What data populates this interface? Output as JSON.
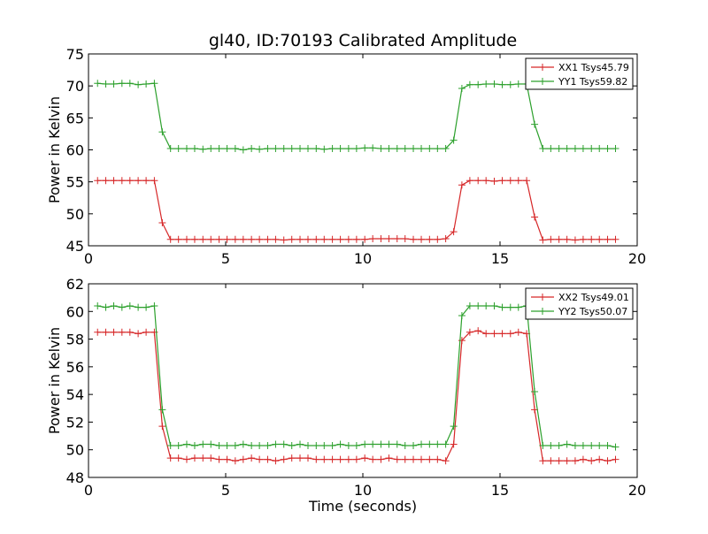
{
  "figure": {
    "title": "gl40, ID:70193 Calibrated Amplitude"
  },
  "chart_data": [
    {
      "type": "line",
      "title": "gl40, ID:70193 Calibrated Amplitude",
      "xlabel": "",
      "ylabel": "Power in Kelvin",
      "xlim": [
        0,
        20
      ],
      "ylim": [
        45,
        75
      ],
      "xticks": [
        "0",
        "5",
        "10",
        "15",
        "20"
      ],
      "yticks": [
        "45",
        "50",
        "55",
        "60",
        "65",
        "70",
        "75"
      ],
      "grid": false,
      "legend_position": "top-right",
      "x": [
        0.33,
        0.63,
        0.92,
        1.22,
        1.51,
        1.81,
        2.1,
        2.4,
        2.69,
        2.99,
        3.28,
        3.58,
        3.87,
        4.17,
        4.46,
        4.76,
        5.05,
        5.35,
        5.64,
        5.94,
        6.23,
        6.53,
        6.82,
        7.12,
        7.41,
        7.71,
        8.0,
        8.3,
        8.59,
        8.89,
        9.18,
        9.48,
        9.77,
        10.07,
        10.36,
        10.66,
        10.95,
        11.25,
        11.54,
        11.84,
        12.13,
        12.43,
        12.72,
        13.02,
        13.31,
        13.61,
        13.9,
        14.2,
        14.49,
        14.79,
        15.08,
        15.38,
        15.67,
        15.97,
        16.26,
        16.56,
        16.85,
        17.15,
        17.44,
        17.74,
        18.03,
        18.33,
        18.62,
        18.92,
        19.21
      ],
      "series": [
        {
          "name": "XX1 Tsys45.79",
          "color": "#d62728",
          "marker": "+",
          "values": [
            55.2,
            55.2,
            55.2,
            55.2,
            55.2,
            55.2,
            55.2,
            55.2,
            48.6,
            46.0,
            46.0,
            46.0,
            46.0,
            46.0,
            46.0,
            46.0,
            46.0,
            46.0,
            46.0,
            46.0,
            46.0,
            46.0,
            46.0,
            45.9,
            46.0,
            46.0,
            46.0,
            46.0,
            46.0,
            46.0,
            46.0,
            46.0,
            46.0,
            46.0,
            46.1,
            46.1,
            46.1,
            46.1,
            46.1,
            46.0,
            46.0,
            46.0,
            46.0,
            46.1,
            47.2,
            54.5,
            55.2,
            55.2,
            55.2,
            55.1,
            55.2,
            55.2,
            55.2,
            55.2,
            49.5,
            45.9,
            46.0,
            46.0,
            46.0,
            45.9,
            46.0,
            46.0,
            46.0,
            46.0,
            46.0
          ]
        },
        {
          "name": "YY1 Tsys59.82",
          "color": "#2ca02c",
          "marker": "+",
          "values": [
            70.4,
            70.3,
            70.3,
            70.4,
            70.4,
            70.2,
            70.3,
            70.4,
            62.8,
            60.2,
            60.2,
            60.2,
            60.2,
            60.1,
            60.2,
            60.2,
            60.2,
            60.2,
            60.0,
            60.2,
            60.1,
            60.2,
            60.2,
            60.2,
            60.2,
            60.2,
            60.2,
            60.2,
            60.1,
            60.2,
            60.2,
            60.2,
            60.2,
            60.3,
            60.3,
            60.2,
            60.2,
            60.2,
            60.2,
            60.2,
            60.2,
            60.2,
            60.2,
            60.2,
            61.5,
            69.6,
            70.2,
            70.2,
            70.3,
            70.3,
            70.2,
            70.2,
            70.3,
            70.3,
            64.0,
            60.2,
            60.2,
            60.2,
            60.2,
            60.2,
            60.2,
            60.2,
            60.2,
            60.2,
            60.2
          ]
        }
      ]
    },
    {
      "type": "line",
      "title": "",
      "xlabel": "Time (seconds)",
      "ylabel": "Power in Kelvin",
      "xlim": [
        0,
        20
      ],
      "ylim": [
        48,
        62
      ],
      "xticks": [
        "0",
        "5",
        "10",
        "15",
        "20"
      ],
      "yticks": [
        "48",
        "50",
        "52",
        "54",
        "56",
        "58",
        "60",
        "62"
      ],
      "grid": false,
      "legend_position": "top-right",
      "x": [
        0.33,
        0.63,
        0.92,
        1.22,
        1.51,
        1.81,
        2.1,
        2.4,
        2.69,
        2.99,
        3.28,
        3.58,
        3.87,
        4.17,
        4.46,
        4.76,
        5.05,
        5.35,
        5.64,
        5.94,
        6.23,
        6.53,
        6.82,
        7.12,
        7.41,
        7.71,
        8.0,
        8.3,
        8.59,
        8.89,
        9.18,
        9.48,
        9.77,
        10.07,
        10.36,
        10.66,
        10.95,
        11.25,
        11.54,
        11.84,
        12.13,
        12.43,
        12.72,
        13.02,
        13.31,
        13.61,
        13.9,
        14.2,
        14.49,
        14.79,
        15.08,
        15.38,
        15.67,
        15.97,
        16.26,
        16.56,
        16.85,
        17.15,
        17.44,
        17.74,
        18.03,
        18.33,
        18.62,
        18.92,
        19.21
      ],
      "series": [
        {
          "name": "XX2 Tsys49.01",
          "color": "#d62728",
          "marker": "+",
          "values": [
            58.5,
            58.5,
            58.5,
            58.5,
            58.5,
            58.4,
            58.5,
            58.5,
            51.7,
            49.4,
            49.4,
            49.3,
            49.4,
            49.4,
            49.4,
            49.3,
            49.3,
            49.2,
            49.3,
            49.4,
            49.3,
            49.3,
            49.2,
            49.3,
            49.4,
            49.4,
            49.4,
            49.3,
            49.3,
            49.3,
            49.3,
            49.3,
            49.3,
            49.4,
            49.3,
            49.3,
            49.4,
            49.3,
            49.3,
            49.3,
            49.3,
            49.3,
            49.3,
            49.2,
            50.4,
            57.9,
            58.5,
            58.6,
            58.4,
            58.4,
            58.4,
            58.4,
            58.5,
            58.4,
            52.9,
            49.2,
            49.2,
            49.2,
            49.2,
            49.2,
            49.3,
            49.2,
            49.3,
            49.2,
            49.3
          ]
        },
        {
          "name": "YY2 Tsys50.07",
          "color": "#2ca02c",
          "marker": "+",
          "values": [
            60.4,
            60.3,
            60.4,
            60.3,
            60.4,
            60.3,
            60.3,
            60.4,
            52.9,
            50.3,
            50.3,
            50.4,
            50.3,
            50.4,
            50.4,
            50.3,
            50.3,
            50.3,
            50.4,
            50.3,
            50.3,
            50.3,
            50.4,
            50.4,
            50.3,
            50.4,
            50.3,
            50.3,
            50.3,
            50.3,
            50.4,
            50.3,
            50.3,
            50.4,
            50.4,
            50.4,
            50.4,
            50.4,
            50.3,
            50.3,
            50.4,
            50.4,
            50.4,
            50.4,
            51.7,
            59.7,
            60.4,
            60.4,
            60.4,
            60.4,
            60.3,
            60.3,
            60.3,
            60.4,
            54.2,
            50.3,
            50.3,
            50.3,
            50.4,
            50.3,
            50.3,
            50.3,
            50.3,
            50.3,
            50.2
          ]
        }
      ]
    }
  ]
}
